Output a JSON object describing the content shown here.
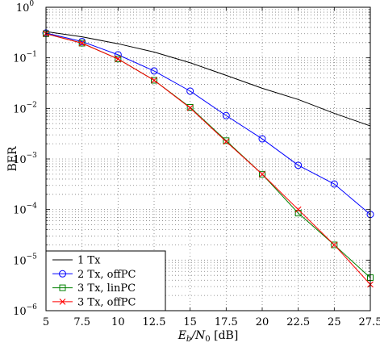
{
  "chart_data": {
    "type": "line",
    "xlabel": "E_b/N_0 [dB]",
    "xlabel_parts": {
      "e": "E",
      "b": "b",
      "slash": "/N",
      "zero": "0",
      "unit": " [dB]"
    },
    "ylabel": "BER",
    "xlim": [
      5,
      27.5
    ],
    "ylim": [
      1e-06,
      1
    ],
    "yscale": "log",
    "grid": true,
    "legend_position": "bottom-left",
    "x_ticks": [
      5,
      7.5,
      10,
      12.5,
      15,
      17.5,
      20,
      22.5,
      25,
      27.5
    ],
    "x_tick_labels": [
      "5",
      "7.5",
      "10",
      "12.5",
      "15",
      "17.5",
      "20",
      "22.5",
      "25",
      "27.5"
    ],
    "y_ticks": [
      {
        "value": 1e-06,
        "base": "10",
        "exp": "−6"
      },
      {
        "value": 1e-05,
        "base": "10",
        "exp": "−5"
      },
      {
        "value": 0.0001,
        "base": "10",
        "exp": "−4"
      },
      {
        "value": 0.001,
        "base": "10",
        "exp": "−3"
      },
      {
        "value": 0.01,
        "base": "10",
        "exp": "−2"
      },
      {
        "value": 0.1,
        "base": "10",
        "exp": "−1"
      },
      {
        "value": 1,
        "base": "10",
        "exp": "0"
      }
    ],
    "series": [
      {
        "name": "1 Tx",
        "color": "#000000",
        "marker": "none",
        "x": [
          5,
          7.5,
          10,
          12.5,
          15,
          17.5,
          20,
          22.5,
          25,
          27.5
        ],
        "values": [
          0.33,
          0.26,
          0.19,
          0.13,
          0.08,
          0.045,
          0.025,
          0.015,
          0.008,
          0.0045
        ]
      },
      {
        "name": "2 Tx, offPC",
        "color": "#0000ff",
        "marker": "circle",
        "x": [
          5,
          7.5,
          10,
          12.5,
          15,
          17.5,
          20,
          22.5,
          25,
          27.5
        ],
        "values": [
          0.31,
          0.21,
          0.115,
          0.055,
          0.022,
          0.0072,
          0.0025,
          0.00075,
          0.00032,
          8e-05
        ]
      },
      {
        "name": "3 Tx, linPC",
        "color": "#008000",
        "marker": "square",
        "x": [
          5,
          7.5,
          10,
          12.5,
          15,
          17.5,
          20,
          22.5,
          25,
          27.5
        ],
        "values": [
          0.3,
          0.195,
          0.095,
          0.036,
          0.0105,
          0.0023,
          0.0005,
          8.5e-05,
          2e-05,
          4.5e-06
        ]
      },
      {
        "name": "3 Tx, offPC",
        "color": "#ff0000",
        "marker": "x",
        "x": [
          5,
          7.5,
          10,
          12.5,
          15,
          17.5,
          20,
          22.5,
          25,
          27.5
        ],
        "values": [
          0.3,
          0.195,
          0.095,
          0.036,
          0.0102,
          0.0022,
          0.0005,
          0.0001,
          2e-05,
          3.3e-06
        ]
      }
    ]
  }
}
